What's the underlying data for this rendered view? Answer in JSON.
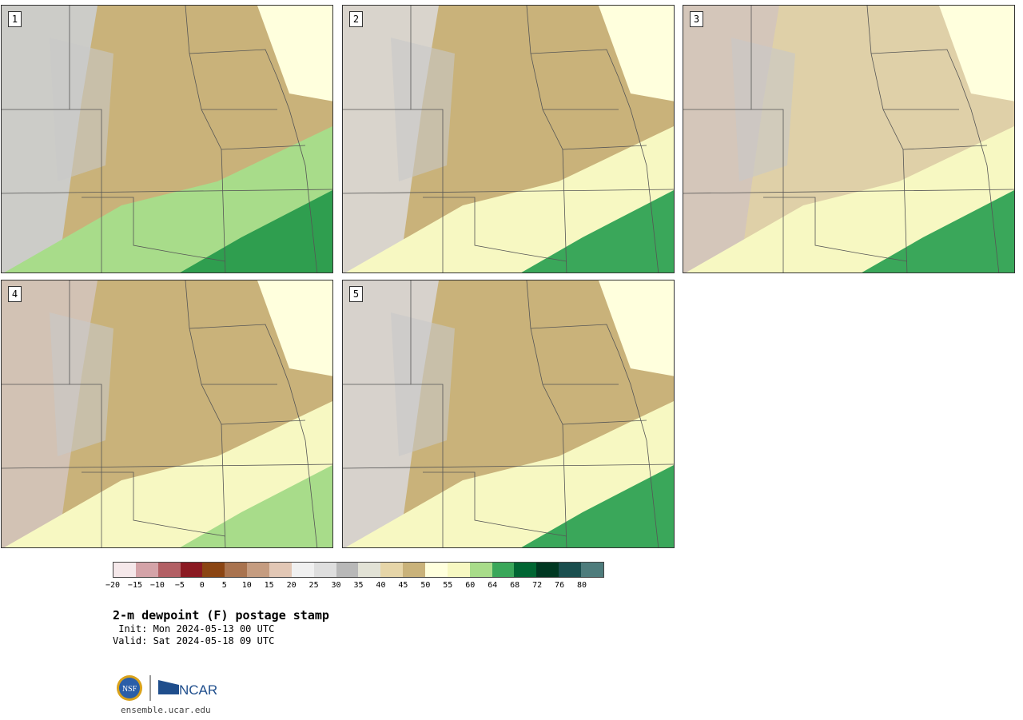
{
  "panels": [
    {
      "label": "1",
      "low": "#ccccc8",
      "mid": "#c9b27a",
      "high": "#a8dc8a",
      "accent": "#2f9e4f"
    },
    {
      "label": "2",
      "low": "#d9d4cc",
      "mid": "#c9b27a",
      "high": "#f7f8c2",
      "accent": "#3aa75a"
    },
    {
      "label": "3",
      "low": "#d4c6ba",
      "mid": "#dfd0a8",
      "high": "#f7f8c2",
      "accent": "#3aa75a"
    },
    {
      "label": "4",
      "low": "#d2c2b4",
      "mid": "#c9b27a",
      "high": "#f7f8c2",
      "accent": "#a8dc8a"
    },
    {
      "label": "5",
      "low": "#d7d2cc",
      "mid": "#c9b27a",
      "high": "#f7f8c2",
      "accent": "#3aa75a"
    }
  ],
  "colorbar": {
    "colors": [
      "#f5e8ea",
      "#d4a3a8",
      "#b25f64",
      "#8b1a22",
      "#8b4513",
      "#a9734f",
      "#c59c80",
      "#e2c7b5",
      "#f0f0f0",
      "#dedede",
      "#b8b8b8",
      "#e2e2d6",
      "#e6d5a8",
      "#c9b27a",
      "#ffffdd",
      "#f7f8c2",
      "#a8dc8a",
      "#3aa75a",
      "#006633",
      "#003822",
      "#1a4e4e",
      "#4e7c7c"
    ],
    "tick_labels": [
      "−20",
      "−15",
      "−10",
      "−5",
      "0",
      "5",
      "10",
      "15",
      "20",
      "25",
      "30",
      "35",
      "40",
      "45",
      "50",
      "55",
      "60",
      "64",
      "68",
      "72",
      "76",
      "80"
    ]
  },
  "title": "2-m dewpoint (F) postage stamp",
  "init": " Init: Mon 2024-05-13 00 UTC",
  "valid": "Valid: Sat 2024-05-18 09 UTC",
  "logo": {
    "nsf": "NSF",
    "ncar": "NCAR"
  },
  "site": "ensemble.ucar.edu"
}
